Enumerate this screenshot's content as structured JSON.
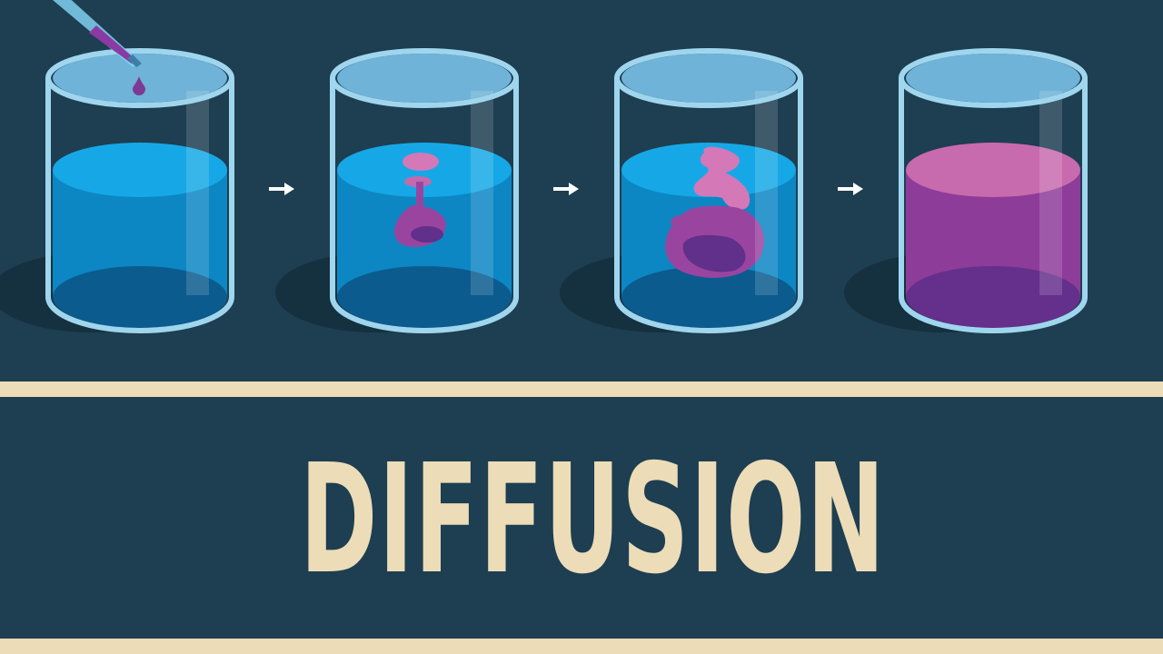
{
  "title": "DIFFUSION",
  "stages": [
    {
      "name": "dropper-release"
    },
    {
      "name": "early-diffusion"
    },
    {
      "name": "mid-diffusion"
    },
    {
      "name": "fully-mixed"
    }
  ],
  "colors": {
    "background": "#1e3e51",
    "accent": "#ecdcb8",
    "water": "#0e98d6",
    "dye": "#9945a0",
    "dye_light": "#d478b8",
    "dye_dark": "#60308a",
    "arrow": "#ffffff"
  },
  "icons": [
    "dropper-icon",
    "dye-drop-icon",
    "arrow-right-icon",
    "beaker-icon"
  ]
}
